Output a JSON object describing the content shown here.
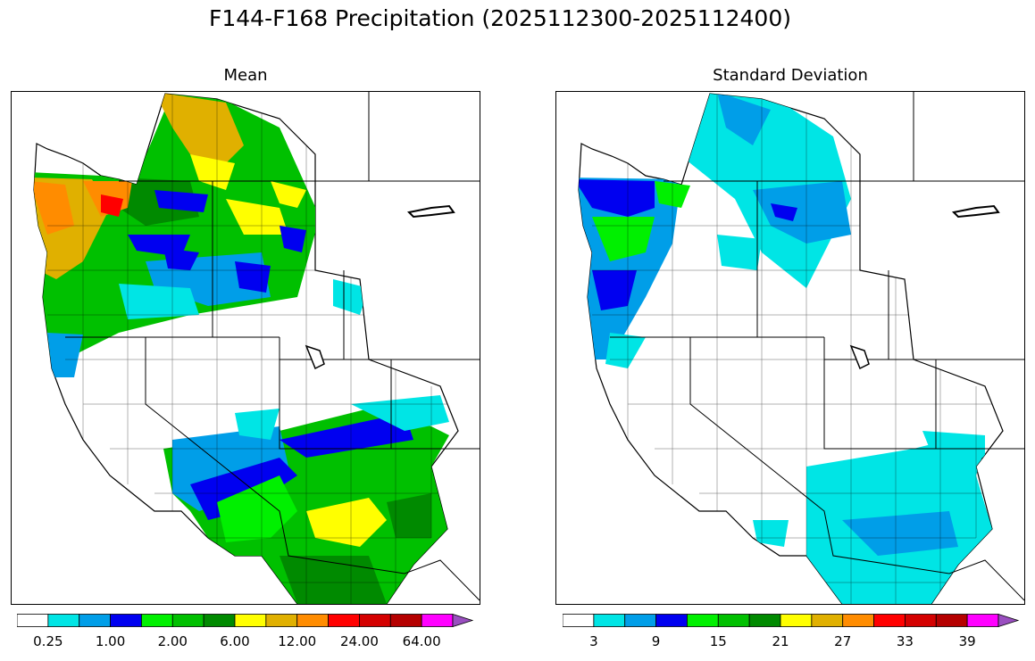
{
  "title": "F144-F168 Precipitation (2025112300-2025112400)",
  "panels": [
    {
      "id": "mean",
      "title": "Mean",
      "colorbar": {
        "colors": [
          "#ffffff",
          "#00e5e5",
          "#009ee8",
          "#0000f0",
          "#00f000",
          "#00c000",
          "#008a00",
          "#ffff00",
          "#e0b000",
          "#ff8c00",
          "#ff0000",
          "#d40000",
          "#b50000",
          "#ff00ff",
          "#9a4fc0"
        ],
        "tick_labels": [
          "0.25",
          "1.00",
          "2.00",
          "6.00",
          "12.00",
          "24.00",
          "64.00"
        ],
        "tick_label_boundaries": [
          1,
          3,
          5,
          7,
          9,
          11,
          13
        ],
        "extend": "max"
      }
    },
    {
      "id": "stddev",
      "title": "Standard Deviation",
      "colorbar": {
        "colors": [
          "#ffffff",
          "#00e5e5",
          "#009ee8",
          "#0000f0",
          "#00f000",
          "#00c000",
          "#008a00",
          "#ffff00",
          "#e0b000",
          "#ff8c00",
          "#ff0000",
          "#d40000",
          "#b50000",
          "#ff00ff",
          "#9a4fc0"
        ],
        "tick_labels": [
          "3",
          "9",
          "15",
          "21",
          "27",
          "33",
          "39"
        ],
        "tick_label_boundaries": [
          1,
          3,
          5,
          7,
          9,
          11,
          13
        ],
        "extend": "max"
      }
    }
  ]
}
